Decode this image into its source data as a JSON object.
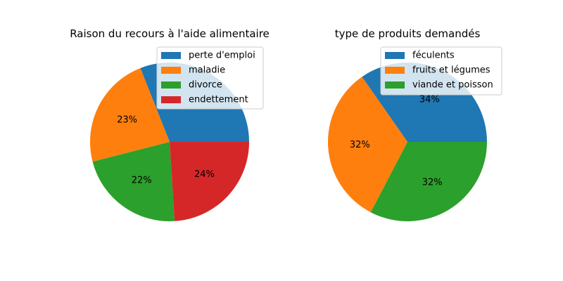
{
  "chart_data": [
    {
      "type": "pie",
      "title": "Raison du recours à l'aide alimentaire",
      "categories": [
        "perte d'emploi",
        "maladie",
        "divorce",
        "endettement"
      ],
      "values": [
        31,
        23,
        22,
        24
      ],
      "visible_percent_labels": [
        "",
        "23%",
        "22%",
        "24%"
      ],
      "colors": [
        "#1f77b4",
        "#ff7f0e",
        "#2ca02c",
        "#d62728"
      ],
      "legend_position": "upper-right"
    },
    {
      "type": "pie",
      "title": "type de produits demandés",
      "categories": [
        "féculents",
        "fruits et légumes",
        "viande et poisson"
      ],
      "values": [
        34,
        32,
        32
      ],
      "visible_percent_labels": [
        "34%",
        "32%",
        "32%"
      ],
      "colors": [
        "#1f77b4",
        "#ff7f0e",
        "#2ca02c"
      ],
      "legend_position": "upper-right"
    }
  ]
}
